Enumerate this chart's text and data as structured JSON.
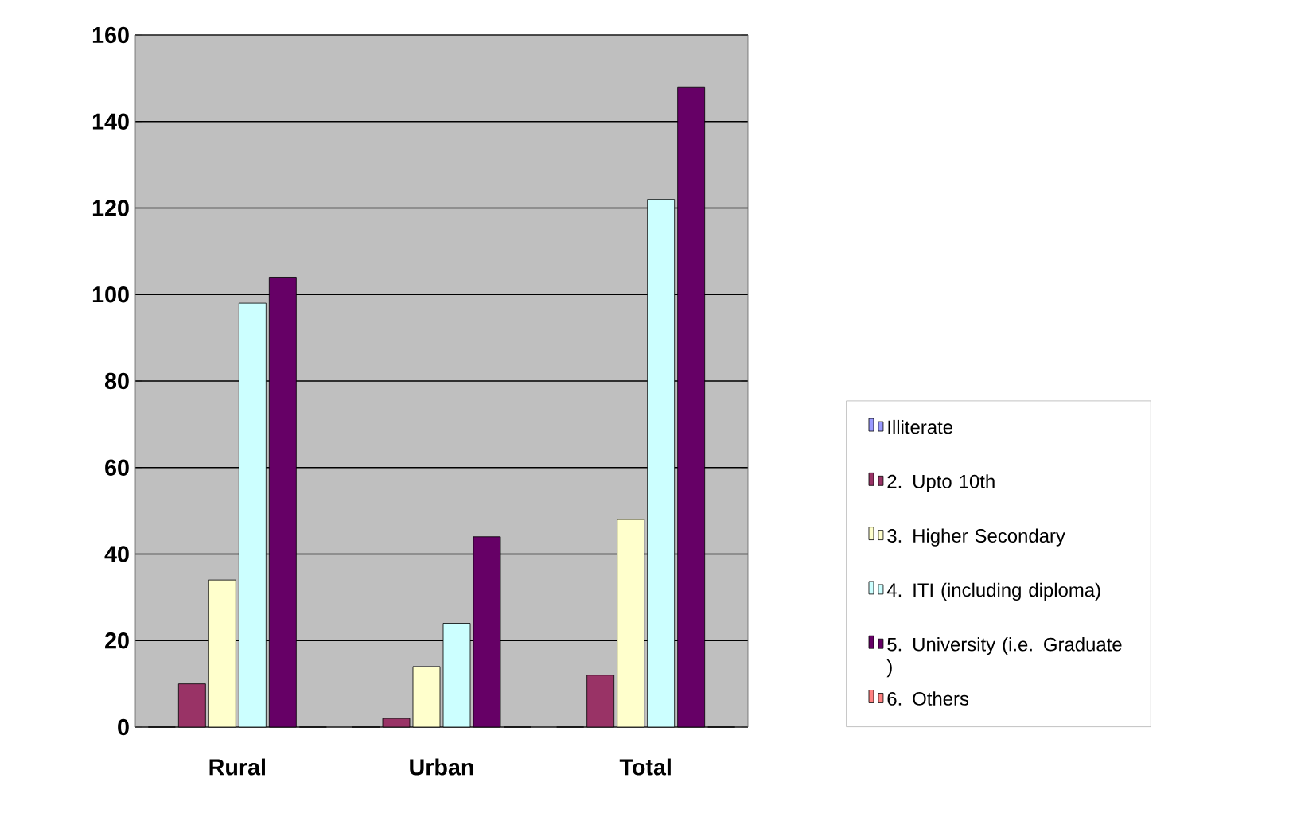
{
  "chart_data": {
    "type": "bar",
    "categories": [
      "Rural",
      "Urban",
      "Total"
    ],
    "series": [
      {
        "name": "Illiterate",
        "color": "#9999ff",
        "values": [
          0,
          0,
          0
        ]
      },
      {
        "name": "2. Upto  10th",
        "color": "#993366",
        "values": [
          10,
          2,
          12
        ]
      },
      {
        "name": "3. Higher Secondary",
        "color": "#ffffcc",
        "values": [
          34,
          14,
          48
        ]
      },
      {
        "name": "4. ITI (including diploma)",
        "color": "#ccffff",
        "values": [
          98,
          24,
          122
        ]
      },
      {
        "name": "5. University (i.e. Graduate )",
        "color": "#660066",
        "values": [
          104,
          44,
          148
        ]
      },
      {
        "name": "6. Others",
        "color": "#ff8080",
        "values": [
          0,
          0,
          0
        ]
      }
    ],
    "ylim": [
      0,
      160
    ],
    "yticks": [
      0,
      20,
      40,
      60,
      80,
      100,
      120,
      140,
      160
    ],
    "grid": "y",
    "legend": "right"
  }
}
